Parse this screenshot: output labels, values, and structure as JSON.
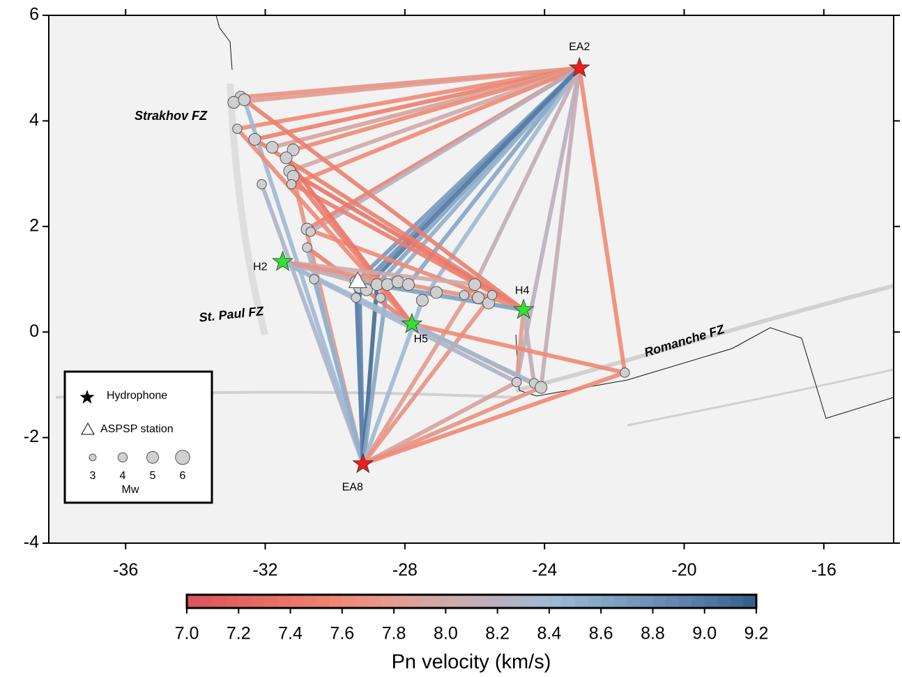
{
  "chart_data": {
    "type": "map",
    "xlim": [
      -38.2,
      -14
    ],
    "ylim": [
      -4,
      6
    ],
    "xticks": [
      -36,
      -32,
      -28,
      -24,
      -20,
      -16
    ],
    "yticks": [
      -4,
      -2,
      0,
      2,
      4,
      6
    ],
    "annotations": [
      "Strakhov FZ",
      "St. Paul FZ",
      "Romanche FZ"
    ],
    "hydrophones": [
      {
        "name": "EA2",
        "lon": -23.0,
        "lat": 5.0,
        "color": "#ee1c1c"
      },
      {
        "name": "EA8",
        "lon": -29.2,
        "lat": -2.5,
        "color": "#ee1c1c"
      },
      {
        "name": "H2",
        "lon": -31.5,
        "lat": 1.33,
        "color": "#33e033"
      },
      {
        "name": "H4",
        "lon": -24.6,
        "lat": 0.42,
        "color": "#33e033"
      },
      {
        "name": "H5",
        "lon": -27.8,
        "lat": 0.15,
        "color": "#33e033"
      }
    ],
    "station": {
      "lon": -29.35,
      "lat": 0.95
    },
    "events": {
      "lon": [
        -32.7,
        -32.9,
        -32.6,
        -32.8,
        -32.3,
        -31.8,
        -31.2,
        -31.4,
        -31.3,
        -31.2,
        -31.25,
        -32.1,
        -30.8,
        -30.7,
        -30.8,
        -30.6,
        -29.4,
        -29.3,
        -29.1,
        -28.8,
        -28.5,
        -28.2,
        -27.9,
        -27.5,
        -27.1,
        -26.0,
        -25.9,
        -25.6,
        -25.5,
        -29.4,
        -28.7,
        -26.3,
        -24.8,
        -24.3,
        -24.1,
        -21.7
      ],
      "lat": [
        4.45,
        4.35,
        4.4,
        3.85,
        3.65,
        3.5,
        3.45,
        3.3,
        3.05,
        2.95,
        2.8,
        2.8,
        1.95,
        1.9,
        1.6,
        1.0,
        0.95,
        0.85,
        0.8,
        0.9,
        0.9,
        0.95,
        0.9,
        0.6,
        0.75,
        0.9,
        0.65,
        0.55,
        0.7,
        0.65,
        0.65,
        0.7,
        -0.95,
        -0.97,
        -1.05,
        -0.77
      ],
      "mw": [
        5,
        5,
        5,
        4,
        5,
        5,
        5,
        5,
        5,
        5,
        4,
        4,
        5,
        4,
        4,
        4,
        5,
        5,
        5,
        5,
        5,
        5,
        5,
        5,
        5,
        5,
        5,
        5,
        4,
        4,
        4,
        4,
        4,
        4,
        5,
        4
      ]
    },
    "paths": [
      {
        "lon": [
          -23.0,
          -32.7
        ],
        "lat": [
          5.0,
          4.45
        ],
        "velocity": 7.7
      },
      {
        "lon": [
          -23.0,
          -32.9
        ],
        "lat": [
          5.0,
          4.35
        ],
        "velocity": 7.8
      },
      {
        "lon": [
          -23.0,
          -32.8
        ],
        "lat": [
          5.0,
          3.85
        ],
        "velocity": 7.6
      },
      {
        "lon": [
          -23.0,
          -32.3
        ],
        "lat": [
          5.0,
          3.65
        ],
        "velocity": 7.5
      },
      {
        "lon": [
          -23.0,
          -31.8
        ],
        "lat": [
          5.0,
          3.5
        ],
        "velocity": 7.9
      },
      {
        "lon": [
          -23.0,
          -31.2
        ],
        "lat": [
          5.0,
          3.45
        ],
        "velocity": 7.6
      },
      {
        "lon": [
          -23.0,
          -31.3
        ],
        "lat": [
          5.0,
          3.05
        ],
        "velocity": 8.0
      },
      {
        "lon": [
          -23.0,
          -31.2
        ],
        "lat": [
          5.0,
          2.8
        ],
        "velocity": 7.6
      },
      {
        "lon": [
          -23.0,
          -30.8
        ],
        "lat": [
          5.0,
          1.95
        ],
        "velocity": 7.5
      },
      {
        "lon": [
          -23.0,
          -30.7
        ],
        "lat": [
          5.0,
          1.9
        ],
        "velocity": 8.2
      },
      {
        "lon": [
          -23.0,
          -29.4
        ],
        "lat": [
          5.0,
          0.95
        ],
        "velocity": 8.7
      },
      {
        "lon": [
          -23.0,
          -29.3
        ],
        "lat": [
          5.0,
          0.85
        ],
        "velocity": 8.8
      },
      {
        "lon": [
          -23.0,
          -28.8
        ],
        "lat": [
          5.0,
          0.9
        ],
        "velocity": 8.6
      },
      {
        "lon": [
          -23.0,
          -28.5
        ],
        "lat": [
          5.0,
          0.9
        ],
        "velocity": 8.5
      },
      {
        "lon": [
          -23.0,
          -27.9
        ],
        "lat": [
          5.0,
          0.9
        ],
        "velocity": 8.6
      },
      {
        "lon": [
          -23.0,
          -27.5
        ],
        "lat": [
          5.0,
          0.6
        ],
        "velocity": 8.4
      },
      {
        "lon": [
          -23.0,
          -29.4
        ],
        "lat": [
          5.0,
          0.65
        ],
        "velocity": 9.0
      },
      {
        "lon": [
          -23.0,
          -26.0
        ],
        "lat": [
          5.0,
          0.9
        ],
        "velocity": 8.1
      },
      {
        "lon": [
          -23.0,
          -24.8
        ],
        "lat": [
          5.0,
          -0.95
        ],
        "velocity": 8.2
      },
      {
        "lon": [
          -23.0,
          -24.1
        ],
        "lat": [
          5.0,
          -1.05
        ],
        "velocity": 8.1
      },
      {
        "lon": [
          -23.0,
          -21.7
        ],
        "lat": [
          5.0,
          -0.77
        ],
        "velocity": 7.6
      },
      {
        "lon": [
          -29.2,
          -32.6
        ],
        "lat": [
          -2.5,
          4.4
        ],
        "velocity": 8.4
      },
      {
        "lon": [
          -29.2,
          -32.1
        ],
        "lat": [
          -2.5,
          2.8
        ],
        "velocity": 8.3
      },
      {
        "lon": [
          -29.2,
          -31.2
        ],
        "lat": [
          -2.5,
          2.95
        ],
        "velocity": 7.7
      },
      {
        "lon": [
          -29.2,
          -30.8
        ],
        "lat": [
          -2.5,
          1.6
        ],
        "velocity": 8.4
      },
      {
        "lon": [
          -29.2,
          -30.6
        ],
        "lat": [
          -2.5,
          1.0
        ],
        "velocity": 8.5
      },
      {
        "lon": [
          -29.2,
          -29.4
        ],
        "lat": [
          -2.5,
          0.95
        ],
        "velocity": 9.0
      },
      {
        "lon": [
          -29.2,
          -29.3
        ],
        "lat": [
          -2.5,
          0.85
        ],
        "velocity": 8.9
      },
      {
        "lon": [
          -29.2,
          -28.8
        ],
        "lat": [
          -2.5,
          0.9
        ],
        "velocity": 9.1
      },
      {
        "lon": [
          -29.2,
          -28.5
        ],
        "lat": [
          -2.5,
          0.9
        ],
        "velocity": 8.6
      },
      {
        "lon": [
          -29.2,
          -27.5
        ],
        "lat": [
          -2.5,
          0.6
        ],
        "velocity": 8.4
      },
      {
        "lon": [
          -29.2,
          -26.0
        ],
        "lat": [
          -2.5,
          0.9
        ],
        "velocity": 7.8
      },
      {
        "lon": [
          -29.2,
          -25.5
        ],
        "lat": [
          -2.5,
          0.7
        ],
        "velocity": 7.7
      },
      {
        "lon": [
          -29.2,
          -24.8
        ],
        "lat": [
          -2.5,
          -0.95
        ],
        "velocity": 7.9
      },
      {
        "lon": [
          -29.2,
          -24.1
        ],
        "lat": [
          -2.5,
          -1.05
        ],
        "velocity": 7.7
      },
      {
        "lon": [
          -29.2,
          -21.7
        ],
        "lat": [
          -2.5,
          -0.77
        ],
        "velocity": 7.6
      },
      {
        "lon": [
          -24.6,
          -32.7
        ],
        "lat": [
          0.42,
          4.45
        ],
        "velocity": 7.5
      },
      {
        "lon": [
          -24.6,
          -32.3
        ],
        "lat": [
          0.42,
          3.65
        ],
        "velocity": 7.5
      },
      {
        "lon": [
          -24.6,
          -31.3
        ],
        "lat": [
          0.42,
          3.05
        ],
        "velocity": 7.4
      },
      {
        "lon": [
          -24.6,
          -31.2
        ],
        "lat": [
          0.42,
          2.8
        ],
        "velocity": 7.5
      },
      {
        "lon": [
          -24.6,
          -30.8
        ],
        "lat": [
          0.42,
          1.95
        ],
        "velocity": 7.6
      },
      {
        "lon": [
          -24.6,
          -29.4
        ],
        "lat": [
          0.42,
          0.95
        ],
        "velocity": 8.3
      },
      {
        "lon": [
          -24.6,
          -28.8
        ],
        "lat": [
          0.42,
          0.9
        ],
        "velocity": 8.6
      },
      {
        "lon": [
          -24.6,
          -24.8
        ],
        "lat": [
          0.42,
          -0.95
        ],
        "velocity": 7.8
      },
      {
        "lon": [
          -24.6,
          -24.3
        ],
        "lat": [
          0.42,
          -0.97
        ],
        "velocity": 8.1
      },
      {
        "lon": [
          -27.8,
          -32.8
        ],
        "lat": [
          0.15,
          3.85
        ],
        "velocity": 7.6
      },
      {
        "lon": [
          -27.8,
          -31.4
        ],
        "lat": [
          0.15,
          3.3
        ],
        "velocity": 7.4
      },
      {
        "lon": [
          -27.8,
          -31.2
        ],
        "lat": [
          0.15,
          2.95
        ],
        "velocity": 7.5
      },
      {
        "lon": [
          -27.8,
          -30.8
        ],
        "lat": [
          0.15,
          1.6
        ],
        "velocity": 7.5
      },
      {
        "lon": [
          -27.8,
          -24.1
        ],
        "lat": [
          0.15,
          -1.05
        ],
        "velocity": 7.6
      },
      {
        "lon": [
          -27.8,
          -21.7
        ],
        "lat": [
          0.15,
          -0.77
        ],
        "velocity": 7.6
      },
      {
        "lon": [
          -31.5,
          -29.4
        ],
        "lat": [
          1.33,
          0.95
        ],
        "velocity": 8.2
      },
      {
        "lon": [
          -31.5,
          -28.5
        ],
        "lat": [
          1.33,
          0.9
        ],
        "velocity": 8.1
      },
      {
        "lon": [
          -31.5,
          -26.0
        ],
        "lat": [
          1.33,
          0.9
        ],
        "velocity": 8.0
      },
      {
        "lon": [
          -31.5,
          -25.9
        ],
        "lat": [
          1.33,
          0.65
        ],
        "velocity": 7.7
      },
      {
        "lon": [
          -31.5,
          -24.8
        ],
        "lat": [
          1.33,
          -0.95
        ],
        "velocity": 8.3
      },
      {
        "lon": [
          -31.5,
          -24.3
        ],
        "lat": [
          1.33,
          -0.97
        ],
        "velocity": 8.4
      }
    ],
    "legend": {
      "hydrophone": "Hydrophone",
      "station": "ASPSP station",
      "sizes": [
        3,
        4,
        5,
        6
      ],
      "size_title": "Mw"
    },
    "colorbar": {
      "label": "Pn velocity (km/s)",
      "lim": [
        7.0,
        9.2
      ],
      "ticks": [
        {
          "value": 7.0,
          "label": "7.0"
        },
        7.2,
        7.4,
        7.6,
        7.8,
        {
          "value": 8.0,
          "label": "8.0"
        },
        8.2,
        8.4,
        8.6,
        8.8,
        {
          "value": 9.0,
          "label": "9.0"
        },
        9.2
      ],
      "colors": [
        "#d9545b",
        "#e2655f",
        "#ea7567",
        "#f08a76",
        "#e39c8f",
        "#d0aaa9",
        "#b9b0bf",
        "#9fbad3",
        "#86a6c7",
        "#6c90b8",
        "#5479a3",
        "#2f5e89"
      ]
    }
  }
}
